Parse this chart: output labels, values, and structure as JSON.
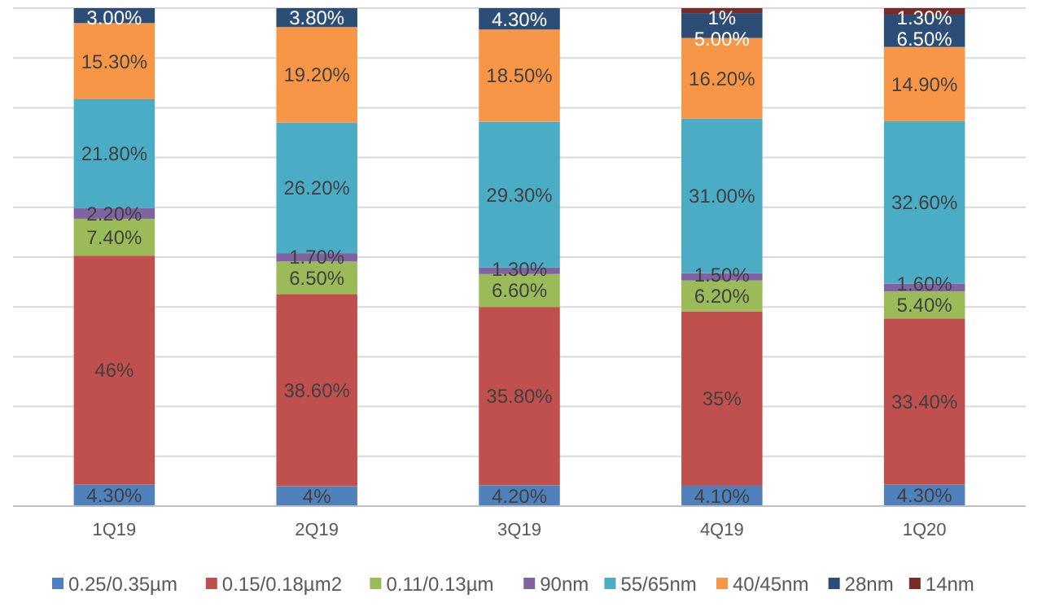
{
  "chart_data": {
    "type": "bar",
    "stacked": true,
    "categories": [
      "1Q19",
      "2Q19",
      "3Q19",
      "4Q19",
      "1Q20"
    ],
    "ylim": [
      0,
      100
    ],
    "yticks": [
      {
        "value": 0,
        "label": null
      },
      {
        "value": 10,
        "label": null
      },
      {
        "value": 20,
        "label": null
      },
      {
        "value": 30,
        "label": null
      },
      {
        "value": 40,
        "label": null
      },
      {
        "value": 50,
        "label": null
      },
      {
        "value": 60,
        "label": null
      },
      {
        "value": 70,
        "label": null
      },
      {
        "value": 80,
        "label": null
      },
      {
        "value": 90,
        "label": null
      },
      {
        "value": 100,
        "label": null
      }
    ],
    "grid": "y",
    "tick_labels": "x",
    "legend": "bottom",
    "series": [
      {
        "name": "0.25/0.35µm",
        "color": "#4f81bd",
        "values": [
          4.3,
          4,
          4.2,
          4.1,
          4.3
        ],
        "value_labels": [
          "4.30%",
          "4%",
          "4.20%",
          "4.10%",
          "4.30%"
        ]
      },
      {
        "name": "0.15/0.18µm2",
        "color": "#c0504d",
        "values": [
          46,
          38.6,
          35.8,
          35,
          33.4
        ],
        "value_labels": [
          "46%",
          "38.60%",
          "35.80%",
          "35%",
          "33.40%"
        ]
      },
      {
        "name": "0.11/0.13µm",
        "color": "#9bbb59",
        "values": [
          7.4,
          6.5,
          6.6,
          6.2,
          5.4
        ],
        "value_labels": [
          "7.40%",
          "6.50%",
          "6.60%",
          "6.20%",
          "5.40%"
        ]
      },
      {
        "name": "90nm",
        "color": "#8064a2",
        "values": [
          2.2,
          1.7,
          1.3,
          1.5,
          1.6
        ],
        "value_labels": [
          "2.20%",
          "1.70%",
          "1.30%",
          "1.50%",
          "1.60%"
        ]
      },
      {
        "name": "55/65nm",
        "color": "#4bacc6",
        "values": [
          21.8,
          26.2,
          29.3,
          31,
          32.6
        ],
        "value_labels": [
          "21.80%",
          "26.20%",
          "29.30%",
          "31.00%",
          "32.60%"
        ]
      },
      {
        "name": "40/45nm",
        "color": "#f79646",
        "values": [
          15.3,
          19.2,
          18.5,
          16.2,
          14.9
        ],
        "value_labels": [
          "15.30%",
          "19.20%",
          "18.50%",
          "16.20%",
          "14.90%"
        ]
      },
      {
        "name": "28nm",
        "color": "#2c4d75",
        "values": [
          3,
          3.8,
          4.3,
          5,
          6.5
        ],
        "value_labels": [
          "3.00%",
          "3.80%",
          "4.30%",
          "5.00%",
          "6.50%"
        ]
      },
      {
        "name": "14nm",
        "color": "#772c2a",
        "values": [
          null,
          null,
          null,
          1,
          1.3
        ],
        "value_labels": [
          null,
          null,
          null,
          "1%",
          "1.30%"
        ]
      }
    ]
  }
}
